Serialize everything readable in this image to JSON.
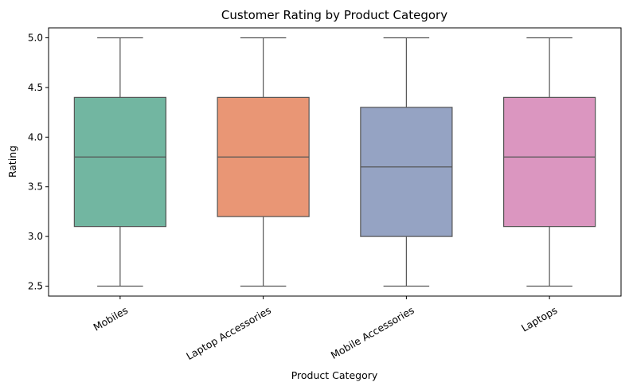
{
  "chart_data": {
    "type": "box",
    "title": "Customer Rating by Product Category",
    "xlabel": "Product Category",
    "ylabel": "Rating",
    "ylim": [
      2.4,
      5.1
    ],
    "yticks": [
      2.5,
      3.0,
      3.5,
      4.0,
      4.5,
      5.0
    ],
    "ytick_labels": [
      "2.5",
      "3.0",
      "3.5",
      "4.0",
      "4.5",
      "5.0"
    ],
    "grid": false,
    "categories": [
      "Mobiles",
      "Laptop Accessories",
      "Mobile Accessories",
      "Laptops"
    ],
    "boxes": [
      {
        "category": "Mobiles",
        "whisker_low": 2.5,
        "q1": 3.1,
        "median": 3.8,
        "q3": 4.4,
        "whisker_high": 5.0,
        "color": "#72b6a1"
      },
      {
        "category": "Laptop Accessories",
        "whisker_low": 2.5,
        "q1": 3.2,
        "median": 3.8,
        "q3": 4.4,
        "whisker_high": 5.0,
        "color": "#e99675"
      },
      {
        "category": "Mobile Accessories",
        "whisker_low": 2.5,
        "q1": 3.0,
        "median": 3.7,
        "q3": 4.3,
        "whisker_high": 5.0,
        "color": "#95a3c3"
      },
      {
        "category": "Laptops",
        "whisker_low": 2.5,
        "q1": 3.1,
        "median": 3.8,
        "q3": 4.4,
        "whisker_high": 5.0,
        "color": "#db96c0"
      }
    ],
    "line_color": "#555555"
  }
}
